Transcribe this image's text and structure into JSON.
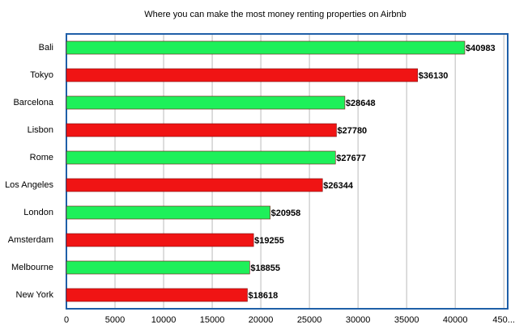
{
  "chart_data": {
    "type": "hbar",
    "title": "Where you can make the most money renting properties on Airbnb",
    "categories": [
      "Bali",
      "Tokyo",
      "Barcelona",
      "Lisbon",
      "Rome",
      "Los Angeles",
      "London",
      "Amsterdam",
      "Melbourne",
      "New York"
    ],
    "values": [
      40983,
      36130,
      28648,
      27780,
      27677,
      26344,
      20958,
      19255,
      18855,
      18618
    ],
    "value_labels": [
      "$40983",
      "$36130",
      "$28648",
      "$27780",
      "$27677",
      "$26344",
      "$20958",
      "$19255",
      "$18855",
      "$18618"
    ],
    "colors": [
      "#1ef05a",
      "#f01414",
      "#1ef05a",
      "#f01414",
      "#1ef05a",
      "#f01414",
      "#1ef05a",
      "#f01414",
      "#1ef05a",
      "#f01414"
    ],
    "xlim": [
      0,
      45400
    ],
    "xticks": [
      0,
      5000,
      10000,
      15000,
      20000,
      25000,
      30000,
      35000,
      40000,
      {
        "value": 45000,
        "label": "450..."
      }
    ],
    "grid": true
  }
}
